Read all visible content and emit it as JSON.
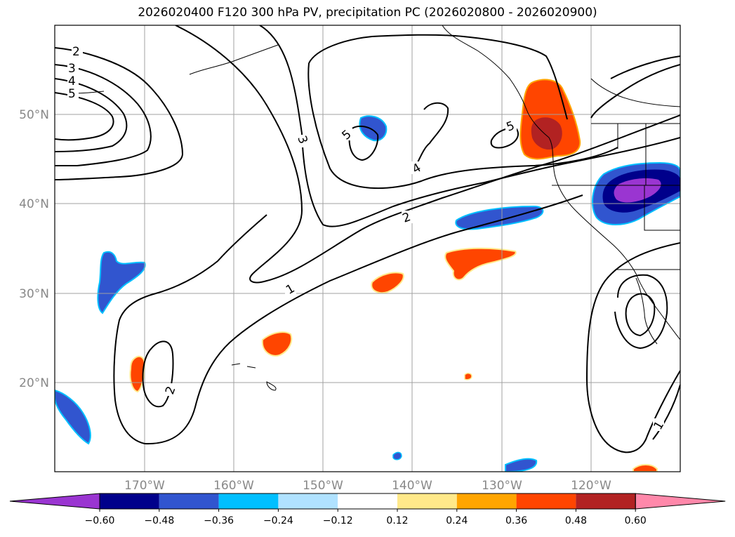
{
  "title": "2026020400 F120 300 hPa PV, precipitation PC (2026020800 - 2026020900)",
  "map": {
    "lon_range": [
      -180,
      -110
    ],
    "lat_range": [
      10,
      60
    ],
    "lat_labels": [
      "50°N",
      "40°N",
      "30°N",
      "20°N"
    ],
    "lon_labels": [
      "170°W",
      "160°W",
      "150°W",
      "140°W",
      "130°W",
      "120°W"
    ],
    "contour_color": "#000000",
    "contour_labels": [
      "2",
      "3",
      "4",
      "5",
      "3",
      "5",
      "4",
      "5",
      "2",
      "1",
      "2",
      "1"
    ]
  },
  "colorbar": {
    "colors": [
      "#9a35d1",
      "#00008b",
      "#3155cf",
      "#00bfff",
      "#b0e2ff",
      "#ffffff",
      "#ffe98a",
      "#ffa500",
      "#ff4500",
      "#b22222",
      "#ff88aa"
    ],
    "tick_labels": [
      "−0.60",
      "−0.48",
      "−0.36",
      "−0.24",
      "−0.12",
      "0.12",
      "0.24",
      "0.36",
      "0.48",
      "0.60"
    ]
  }
}
